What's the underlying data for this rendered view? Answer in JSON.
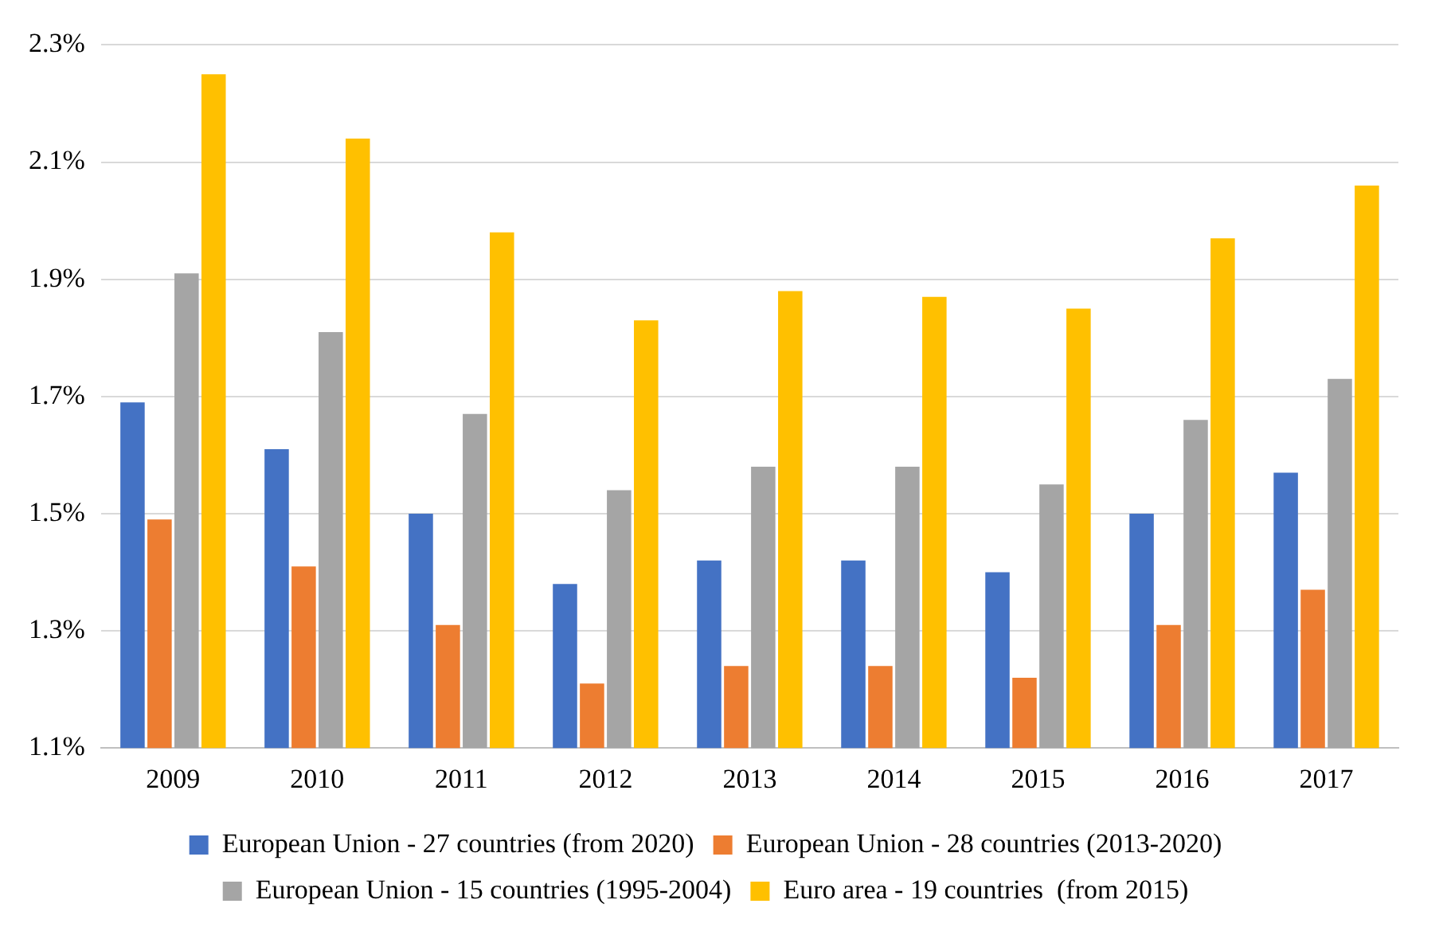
{
  "chart_data": {
    "type": "bar",
    "categories": [
      "2009",
      "2010",
      "2011",
      "2012",
      "2013",
      "2014",
      "2015",
      "2016",
      "2017"
    ],
    "series": [
      {
        "name": "European Union - 27 countries (from 2020)",
        "color": "#4472c4",
        "values": [
          1.69,
          1.61,
          1.5,
          1.38,
          1.42,
          1.42,
          1.4,
          1.5,
          1.57
        ]
      },
      {
        "name": "European Union - 28 countries (2013-2020)",
        "color": "#ed7d31",
        "values": [
          1.49,
          1.41,
          1.31,
          1.21,
          1.24,
          1.24,
          1.22,
          1.31,
          1.37
        ]
      },
      {
        "name": "European Union - 15 countries (1995-2004)",
        "color": "#a5a5a5",
        "values": [
          1.91,
          1.81,
          1.67,
          1.54,
          1.58,
          1.58,
          1.55,
          1.66,
          1.73
        ]
      },
      {
        "name": "Euro area - 19 countries  (from 2015)",
        "color": "#ffc000",
        "values": [
          2.25,
          2.14,
          1.98,
          1.83,
          1.88,
          1.87,
          1.85,
          1.97,
          2.06
        ]
      }
    ],
    "ylim": [
      1.1,
      2.3
    ],
    "yticks": [
      {
        "value": 1.1,
        "label": "1.1%"
      },
      {
        "value": 1.3,
        "label": "1.3%"
      },
      {
        "value": 1.5,
        "label": "1.5%"
      },
      {
        "value": 1.7,
        "label": "1.7%"
      },
      {
        "value": 1.9,
        "label": "1.9%"
      },
      {
        "value": 2.1,
        "label": "2.1%"
      },
      {
        "value": 2.3,
        "label": "2.3%"
      }
    ],
    "grid": "y",
    "legend": "bottom"
  }
}
